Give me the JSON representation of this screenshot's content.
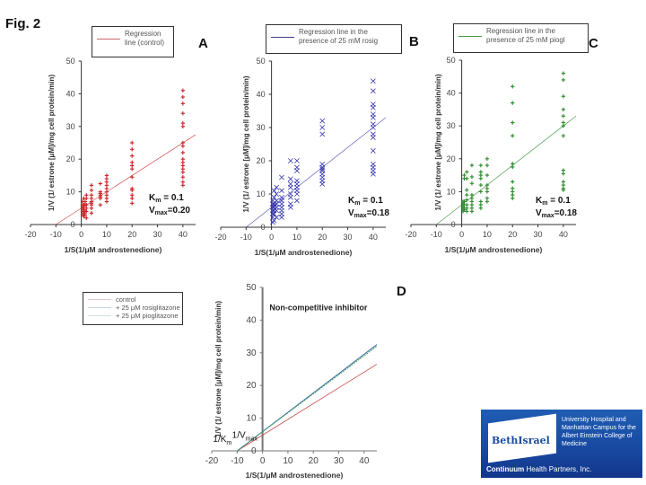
{
  "figure_label": "Fig. 2",
  "logo": {
    "name": "BethIsrael",
    "subtitle": "University Hospital and Manhattan Campus for the Albert Einstein College of Medicine",
    "footer_bold": "Continuum",
    "footer_rest": " Health Partners, Inc."
  },
  "chart_data": [
    {
      "panel": "A",
      "type": "scatter",
      "legend": [
        "Regression line (control)"
      ],
      "xlabel": "1/S(1/μM androstenedione)",
      "ylabel": "1/V (1/ estrone [μM]/mg cell protein/min)",
      "xlim": [
        -20,
        45
      ],
      "ylim": [
        0,
        50
      ],
      "xticks": [
        "-20",
        "-10",
        "0",
        "10",
        "20",
        "30",
        "40"
      ],
      "yticks": [
        "0",
        "10",
        "20",
        "30",
        "40",
        "50"
      ],
      "annotation_km": "Km = 0.1",
      "annotation_vmax": "Vmax=0.20",
      "color": "#cc2222",
      "marker": "+",
      "regression": {
        "slope": 0.5,
        "intercept": 5
      },
      "points": {
        "x": [
          0.5,
          0.5,
          0.5,
          0.5,
          0.5,
          0.5,
          1,
          1,
          1,
          1,
          1,
          1,
          1.5,
          1.5,
          1.5,
          1.5,
          2,
          2,
          2,
          2,
          2,
          2,
          4,
          4,
          4,
          4,
          4,
          4,
          4,
          4,
          4,
          7.5,
          7.5,
          7.5,
          7.5,
          7.5,
          7.5,
          7.5,
          10,
          10,
          10,
          10,
          10,
          10,
          10,
          10,
          10,
          20,
          20,
          20,
          20,
          20,
          20,
          20,
          20,
          20,
          20,
          20,
          20,
          40,
          40,
          40,
          40,
          40,
          40,
          40,
          40,
          40,
          40,
          40,
          40,
          40,
          40,
          40,
          40,
          40
        ],
        "y": [
          3,
          4,
          5,
          5.5,
          6,
          7,
          2.5,
          3.5,
          4.5,
          5,
          6,
          8,
          3,
          4,
          6,
          7,
          2,
          4,
          5,
          6,
          8,
          9,
          3.5,
          5,
          6,
          6.5,
          7,
          8,
          9,
          10.5,
          12,
          6,
          8,
          8.5,
          9,
          9.5,
          10,
          12.5,
          7,
          8,
          9,
          10,
          11,
          12,
          13,
          14,
          15,
          6.5,
          8,
          9,
          10.5,
          11,
          14.5,
          17,
          18,
          19,
          21,
          23,
          25,
          12,
          13,
          14.5,
          16,
          17,
          18,
          19,
          20,
          22,
          24,
          25,
          30,
          31,
          34,
          37,
          39,
          41
        ]
      }
    },
    {
      "panel": "B",
      "type": "scatter",
      "legend": [
        "Regression line in the presence of 25 mM rosig"
      ],
      "xlabel": "1/S(1/μM androstenedione)",
      "ylabel": "1/V (1/ estrone [μM]/mg cell protein/min)",
      "xlim": [
        -20,
        45
      ],
      "ylim": [
        0,
        50
      ],
      "xticks": [
        "-20",
        "-10",
        "0",
        "10",
        "20",
        "30",
        "40"
      ],
      "yticks": [
        "0",
        "10",
        "20",
        "30",
        "40",
        "50"
      ],
      "annotation_km": "Km = 0.1",
      "annotation_vmax": "Vmax=0.18",
      "color": "#3333aa",
      "marker": "x",
      "regression": {
        "slope": 0.6,
        "intercept": 6
      },
      "points": {
        "x": [
          0.5,
          0.5,
          0.5,
          0.5,
          0.5,
          0.5,
          0.5,
          1,
          1,
          1,
          1,
          1,
          1,
          1,
          2,
          2,
          2,
          2,
          2,
          2,
          2,
          4,
          4,
          4,
          4,
          4,
          4,
          4,
          4,
          4,
          7.5,
          7.5,
          7.5,
          7.5,
          7.5,
          7.5,
          7.5,
          7.5,
          10,
          10,
          10,
          10,
          10,
          10,
          10,
          10,
          10,
          20,
          20,
          20,
          20,
          20,
          20,
          20,
          20,
          20,
          20,
          20,
          40,
          40,
          40,
          40,
          40,
          40,
          40,
          40,
          40,
          40,
          40,
          40,
          40,
          40,
          40
        ],
        "y": [
          1.5,
          3,
          4,
          5,
          6,
          7,
          8,
          2,
          4,
          5,
          6,
          7,
          9,
          11,
          3,
          5,
          6,
          7,
          8,
          10,
          12,
          3,
          4,
          5,
          6,
          7,
          8,
          9,
          11,
          15,
          6,
          7,
          9,
          10,
          12,
          13,
          14.5,
          20,
          8,
          10,
          11,
          12,
          13,
          14,
          17,
          18,
          20,
          13,
          14,
          15,
          16,
          17,
          17.5,
          18,
          19,
          28,
          30,
          32,
          16,
          17,
          18,
          19,
          23,
          27,
          28,
          30,
          31,
          33,
          34,
          36,
          37,
          41,
          44
        ]
      }
    },
    {
      "panel": "C",
      "type": "scatter",
      "legend": [
        "Regression line in the presence of 25 mM piogl"
      ],
      "xlabel": "1/S(1/μM androstenedione)",
      "ylabel": "1/V (1/ estrone [μM]/mg cell protein/min)",
      "xlim": [
        -20,
        45
      ],
      "ylim": [
        0,
        50
      ],
      "xticks": [
        "-20",
        "-10",
        "0",
        "10",
        "20",
        "30",
        "40"
      ],
      "yticks": [
        "0",
        "10",
        "20",
        "30",
        "40",
        "50"
      ],
      "annotation_km": "Km = 0.1",
      "annotation_vmax": "Vmax=0.18",
      "color": "#2a8a2a",
      "marker": "+",
      "regression": {
        "slope": 0.6,
        "intercept": 6
      },
      "points": {
        "x": [
          0.5,
          0.5,
          0.5,
          0.5,
          0.5,
          0.5,
          0.5,
          1,
          1,
          1,
          1,
          1,
          1,
          2,
          2,
          2,
          2,
          2,
          2,
          2,
          2,
          4,
          4,
          4,
          4,
          4,
          4,
          4,
          4,
          4,
          7.5,
          7.5,
          7.5,
          7.5,
          7.5,
          7.5,
          7.5,
          7.5,
          7.5,
          10,
          10,
          10,
          10,
          10,
          10,
          10,
          10,
          20,
          20,
          20,
          20,
          20,
          20,
          20,
          20,
          20,
          20,
          20,
          40,
          40,
          40,
          40,
          40,
          40,
          40,
          40,
          40,
          40,
          40,
          40,
          40,
          40
        ],
        "y": [
          4,
          4.5,
          5,
          5.5,
          6,
          6.5,
          7,
          4.5,
          5,
          6,
          7,
          14,
          15,
          4,
          5,
          6,
          7.5,
          9,
          10.5,
          14,
          16,
          4,
          5,
          6,
          7,
          8,
          9,
          12.5,
          14.5,
          18,
          5,
          6,
          7,
          10,
          12,
          14,
          15,
          16,
          18,
          7,
          8,
          10,
          11,
          12,
          15,
          18,
          20,
          8,
          9,
          10,
          11,
          13,
          17.5,
          18.5,
          27,
          31,
          37,
          42,
          10.5,
          11,
          12,
          13,
          15.5,
          16.5,
          27,
          30,
          31,
          33,
          35,
          39,
          44,
          46
        ]
      }
    },
    {
      "panel": "D",
      "type": "line",
      "title": "Non-competitive inhibitor",
      "legend": [
        "control",
        "+ 25 μM rosiglitazone",
        "+ 25 μM pioglitazone"
      ],
      "xlabel": "1/S(1/μM androstenedione)",
      "ylabel": "1/V (1/ estrone [μM]/mg cell protein/min)",
      "xlim": [
        -20,
        45
      ],
      "ylim": [
        0,
        50
      ],
      "xticks": [
        "-20",
        "-10",
        "0",
        "10",
        "20",
        "30",
        "40"
      ],
      "yticks": [
        "0",
        "10",
        "20",
        "30",
        "40",
        "50"
      ],
      "annotation_vmax": "1/Vmax",
      "annotation_km": "1/Km",
      "series": [
        {
          "name": "control",
          "color": "#cc4444",
          "x": [
            -10,
            45
          ],
          "y": [
            0,
            26.5
          ]
        },
        {
          "name": "+ 25 μM rosiglitazone",
          "color": "#4466aa",
          "x": [
            -10,
            45
          ],
          "y": [
            0,
            32.5
          ]
        },
        {
          "name": "+ 25 μM pioglitazone",
          "color": "#44aa66",
          "x": [
            -10,
            45
          ],
          "y": [
            0,
            32
          ]
        }
      ]
    }
  ]
}
